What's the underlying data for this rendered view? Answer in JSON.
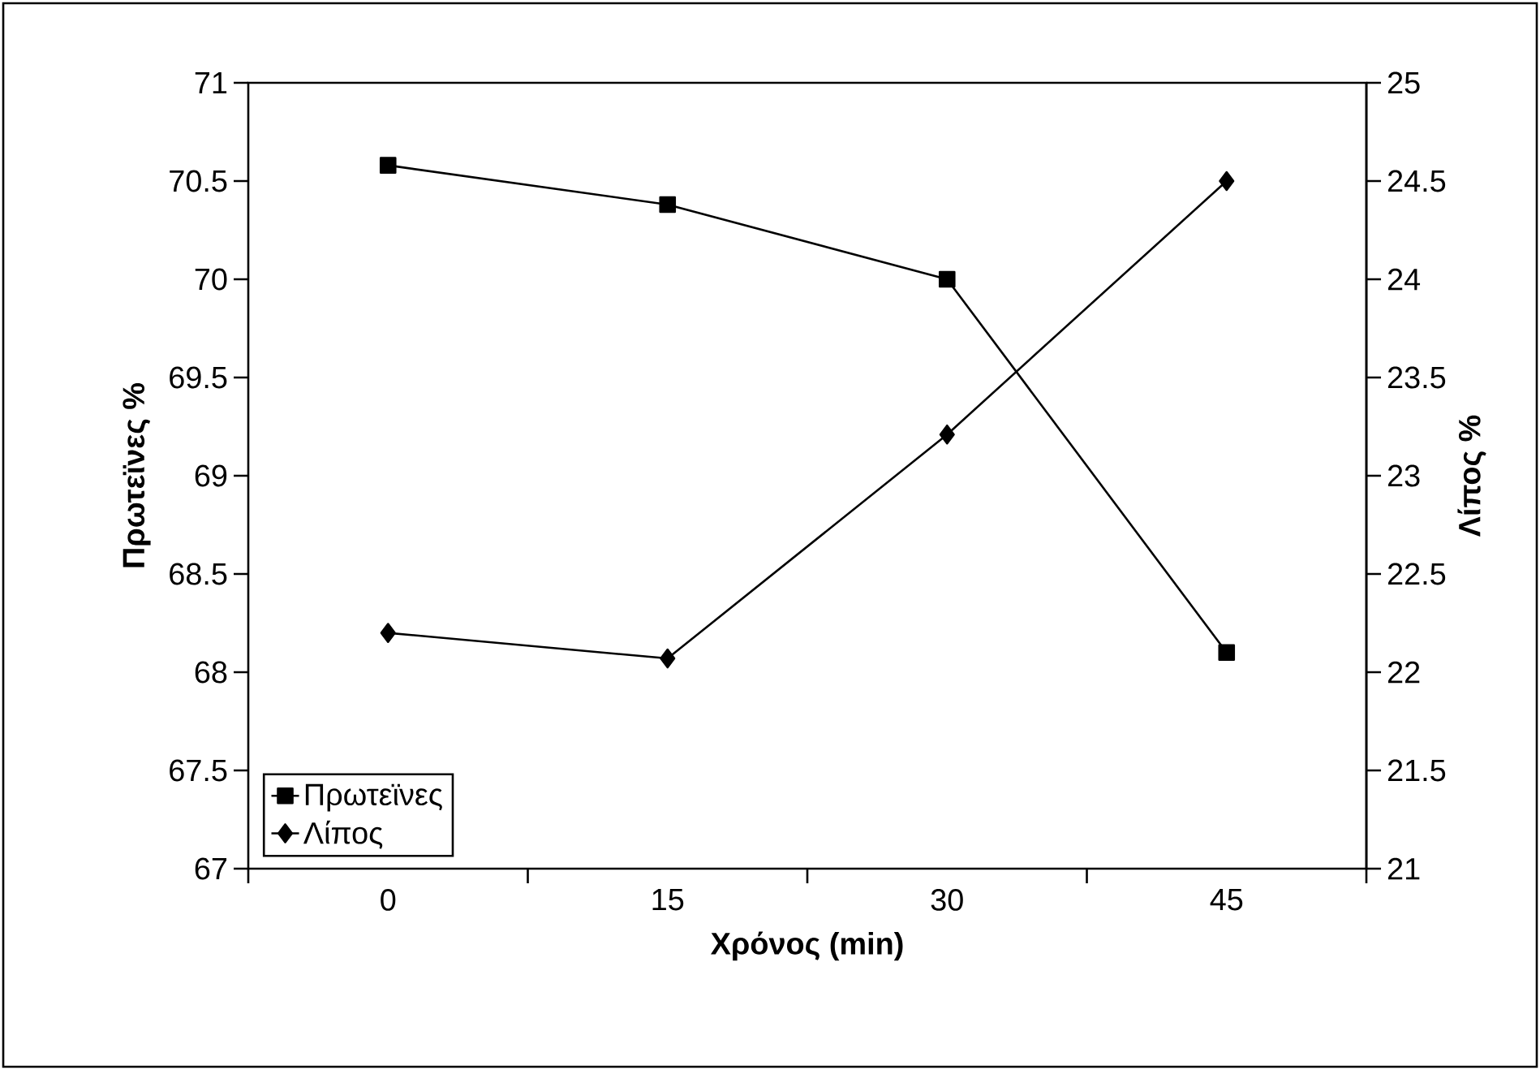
{
  "chart_data": {
    "type": "line",
    "xlabel": "Χρόνος (min)",
    "ylabel": "Πρωτεϊνες %",
    "y2label": "Λίπος %",
    "categories": [
      "0",
      "15",
      "30",
      "45"
    ],
    "series": [
      {
        "name": "Πρωτεϊνες",
        "color": "#000000",
        "marker": "square",
        "values": [
          70.58,
          70.38,
          70.0,
          68.1
        ]
      },
      {
        "name": "Λίπος",
        "color": "#000000",
        "marker": "diamond",
        "axis": "y2",
        "values": [
          22.2,
          22.07,
          23.21,
          24.5
        ]
      }
    ],
    "ylim": [
      67,
      71
    ],
    "yticks": [
      67,
      67.5,
      68,
      68.5,
      69,
      69.5,
      70,
      70.5,
      71
    ],
    "y2lim": [
      21,
      25
    ],
    "y2ticks": [
      21,
      21.5,
      22,
      22.5,
      23,
      23.5,
      24,
      24.5,
      25
    ],
    "legend": "bottom left",
    "line_style": "solid",
    "grid": false
  }
}
